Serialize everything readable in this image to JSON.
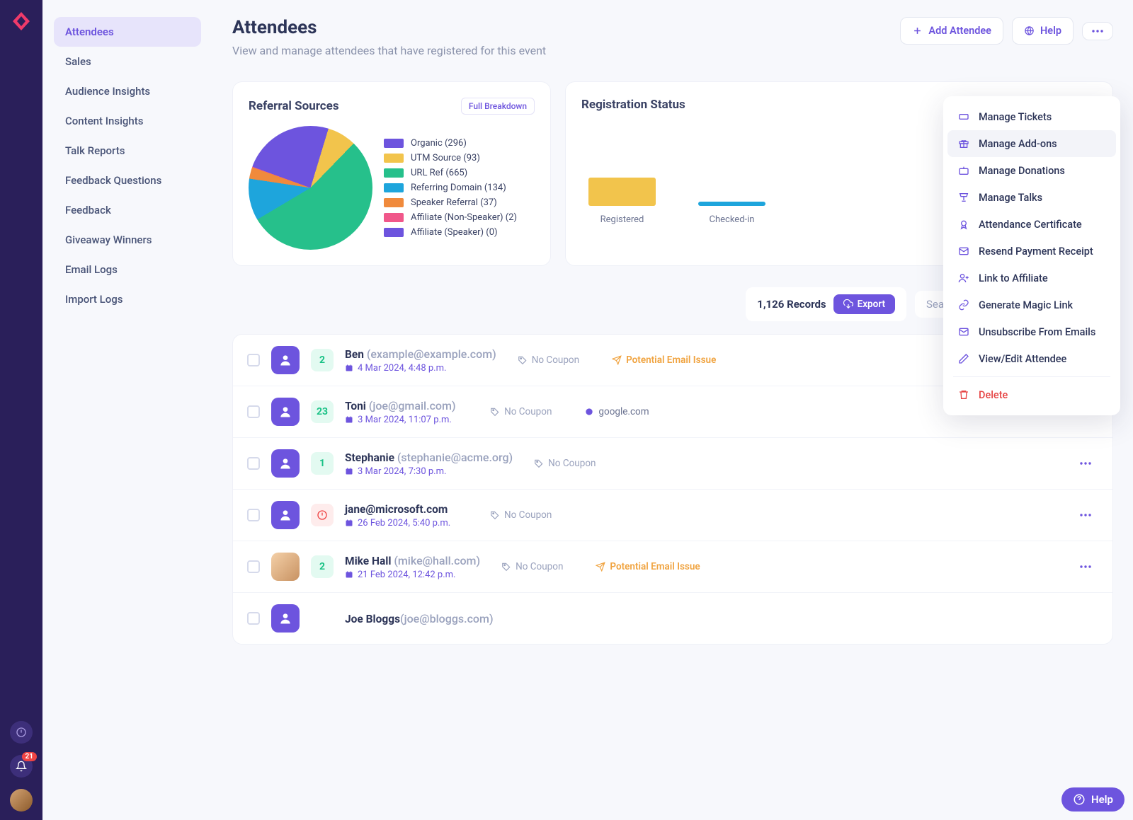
{
  "colors": {
    "purple": "#6d54de",
    "navrail": "#2a1f5a",
    "text_muted": "#8a92ab",
    "warn": "#f0a33f",
    "danger": "#e64545",
    "badge_red": "#ef4444"
  },
  "navrail": {
    "notification_count": "21"
  },
  "sidenav": {
    "items": [
      {
        "label": "Attendees",
        "active": true
      },
      {
        "label": "Sales"
      },
      {
        "label": "Audience Insights"
      },
      {
        "label": "Content Insights"
      },
      {
        "label": "Talk Reports"
      },
      {
        "label": "Feedback Questions"
      },
      {
        "label": "Feedback"
      },
      {
        "label": "Giveaway Winners"
      },
      {
        "label": "Email Logs"
      },
      {
        "label": "Import Logs"
      }
    ]
  },
  "header": {
    "title": "Attendees",
    "subtitle": "View and manage attendees that have registered for this event",
    "add_btn": "Add Attendee",
    "help_btn": "Help"
  },
  "referral_card": {
    "title": "Referral Sources",
    "full_btn": "Full Breakdown",
    "series": [
      {
        "label": "Organic (296)",
        "value": 296,
        "color": "#6d54de"
      },
      {
        "label": "UTM Source (93)",
        "value": 93,
        "color": "#f2c44c"
      },
      {
        "label": "URL Ref (665)",
        "value": 665,
        "color": "#26c08b"
      },
      {
        "label": "Referring Domain (134)",
        "value": 134,
        "color": "#1ea5dc"
      },
      {
        "label": "Speaker Referral (37)",
        "value": 37,
        "color": "#f08a3c"
      },
      {
        "label": "Affiliate (Non-Speaker) (2)",
        "value": 2,
        "color": "#f0578a"
      },
      {
        "label": "Affiliate (Speaker) (0)",
        "value": 0,
        "color": "#6d54de"
      }
    ]
  },
  "regstatus_card": {
    "title": "Registration Status",
    "bars": [
      {
        "label": "Registered",
        "height": 40,
        "color": "#f2c44c"
      },
      {
        "label": "Checked-in",
        "height": 6,
        "color": "#1ea5dc"
      }
    ]
  },
  "toolbar": {
    "records": "1,126 Records",
    "export_btn": "Export",
    "search_placeholder": "Search"
  },
  "context_menu": {
    "items": [
      {
        "label": "Manage Tickets",
        "icon": "ticket"
      },
      {
        "label": "Manage Add-ons",
        "icon": "gift",
        "hover": true
      },
      {
        "label": "Manage Donations",
        "icon": "donate"
      },
      {
        "label": "Manage Talks",
        "icon": "podium"
      },
      {
        "label": "Attendance Certificate",
        "icon": "cert"
      },
      {
        "label": "Resend Payment Receipt",
        "icon": "mail"
      },
      {
        "label": "Link to Affiliate",
        "icon": "userplus"
      },
      {
        "label": "Generate Magic Link",
        "icon": "link"
      },
      {
        "label": "Unsubscribe From Emails",
        "icon": "mailx"
      },
      {
        "label": "View/Edit Attendee",
        "icon": "edit"
      }
    ],
    "delete_label": "Delete"
  },
  "attendees": [
    {
      "name": "Ben",
      "email": "(example@example.com)",
      "count": "2",
      "count_color": "green",
      "date": "4 Mar 2024, 4:48 p.m.",
      "coupon": "No Coupon",
      "flag_type": "warn",
      "flag_text": "Potential Email Issue",
      "show_more": false
    },
    {
      "name": "Toni",
      "email": "(joe@gmail.com)",
      "count": "23",
      "count_color": "green",
      "date": "3 Mar 2024, 11:07 p.m.",
      "coupon": "No Coupon",
      "flag_type": "domain",
      "flag_text": "google.com",
      "show_more": true
    },
    {
      "name": "Stephanie",
      "email": "(stephanie@acme.org)",
      "count": "1",
      "count_color": "green",
      "date": "3 Mar 2024, 7:30 p.m.",
      "coupon": "No Coupon",
      "flag_type": "",
      "flag_text": "",
      "show_more": true
    },
    {
      "name": "jane@microsoft.com",
      "email": "",
      "count": "!",
      "count_color": "red",
      "date": "26 Feb 2024, 5:40 p.m.",
      "coupon": "No Coupon",
      "flag_type": "",
      "flag_text": "",
      "show_more": true
    },
    {
      "name": "Mike Hall",
      "email": "(mike@hall.com)",
      "count": "2",
      "count_color": "green",
      "date": "21 Feb 2024, 12:42 p.m.",
      "coupon": "No Coupon",
      "flag_type": "warn",
      "flag_text": "Potential Email Issue",
      "show_more": true,
      "photo": true
    },
    {
      "name": "Joe Bloggs",
      "email": "(joe@bloggs.com)",
      "count": "",
      "count_color": "",
      "date": "",
      "coupon": "",
      "flag_type": "",
      "flag_text": "",
      "show_more": false,
      "partial": true
    }
  ],
  "help_fab": "Help"
}
